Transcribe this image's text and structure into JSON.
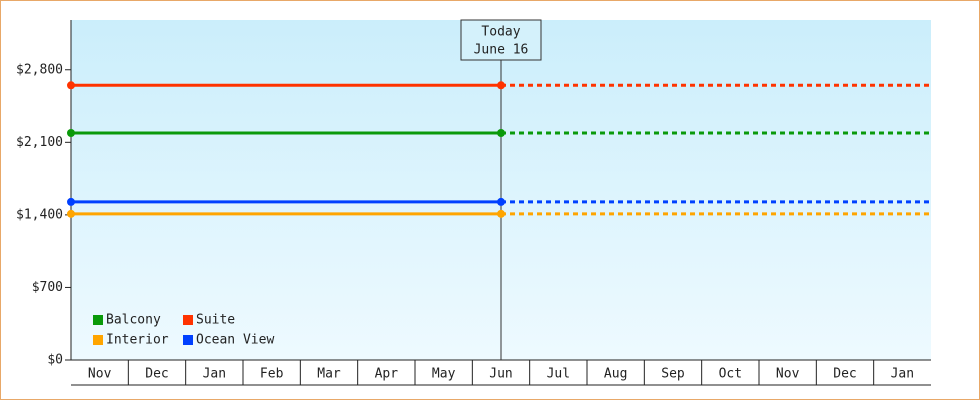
{
  "chart_data": {
    "type": "line",
    "categories": [
      "Nov",
      "Dec",
      "Jan",
      "Feb",
      "Mar",
      "Apr",
      "May",
      "Jun",
      "Jul",
      "Aug",
      "Sep",
      "Oct",
      "Nov",
      "Dec",
      "Jan"
    ],
    "series": [
      {
        "name": "Balcony",
        "color": "#0a9a0a",
        "value": 2190
      },
      {
        "name": "Suite",
        "color": "#ff3300",
        "value": 2650
      },
      {
        "name": "Interior",
        "color": "#ffa500",
        "value": 1410
      },
      {
        "name": "Ocean View",
        "color": "#0040ff",
        "value": 1525
      }
    ],
    "ylim": [
      0,
      3280
    ],
    "yticks": [
      {
        "value": 0,
        "label": "$0"
      },
      {
        "value": 700,
        "label": "$700"
      },
      {
        "value": 1400,
        "label": "$1,400"
      },
      {
        "value": 2100,
        "label": "$2,100"
      },
      {
        "value": 2800,
        "label": "$2,800"
      }
    ],
    "annotation": {
      "label": "Today",
      "date": "June 16"
    },
    "legend": "lower left"
  }
}
